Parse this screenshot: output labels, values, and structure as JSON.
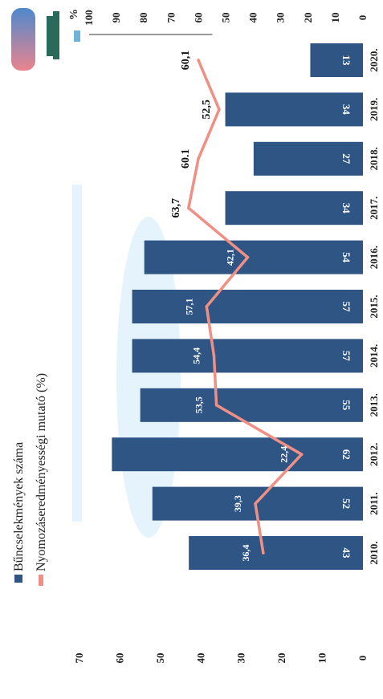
{
  "chart_data": {
    "type": "bar",
    "categories": [
      "2010.",
      "2011.",
      "2012.",
      "2013.",
      "2014.",
      "2015.",
      "2016.",
      "2017.",
      "2018.",
      "2019.",
      "2020."
    ],
    "series": [
      {
        "name": "Bűncselekmények száma",
        "type": "bar",
        "axis": "left",
        "values": [
          43,
          52,
          62,
          55,
          57,
          57,
          54,
          34,
          27,
          34,
          13
        ],
        "labels": [
          "43",
          "52",
          "62",
          "55",
          "57",
          "57",
          "54",
          "34",
          "27",
          "34",
          "13"
        ],
        "color": "#2e5584"
      },
      {
        "name": "Nyomozáseredményességi mutató (%)",
        "type": "line",
        "axis": "right",
        "values": [
          36.4,
          39.3,
          22.4,
          53.5,
          54.4,
          57.1,
          42.1,
          63.7,
          60.1,
          52.5,
          60.1
        ],
        "labels": [
          "36,4",
          "39,3",
          "22,4",
          "53,5",
          "54,4",
          "57,1",
          "42,1",
          "63,7",
          "60.1",
          "52,5",
          "60,1"
        ],
        "color": "#f08f84"
      }
    ],
    "left_axis": {
      "ticks": [
        "0",
        "10",
        "20",
        "30",
        "40",
        "50",
        "60",
        "70"
      ],
      "ylim": [
        0,
        70
      ]
    },
    "right_axis": {
      "ticks": [
        "0",
        "10",
        "20",
        "30",
        "40",
        "50",
        "60",
        "70",
        "80",
        "90",
        "100"
      ],
      "ylim": [
        0,
        100
      ],
      "unit": "%"
    },
    "legend_position": "top",
    "grid": false
  }
}
